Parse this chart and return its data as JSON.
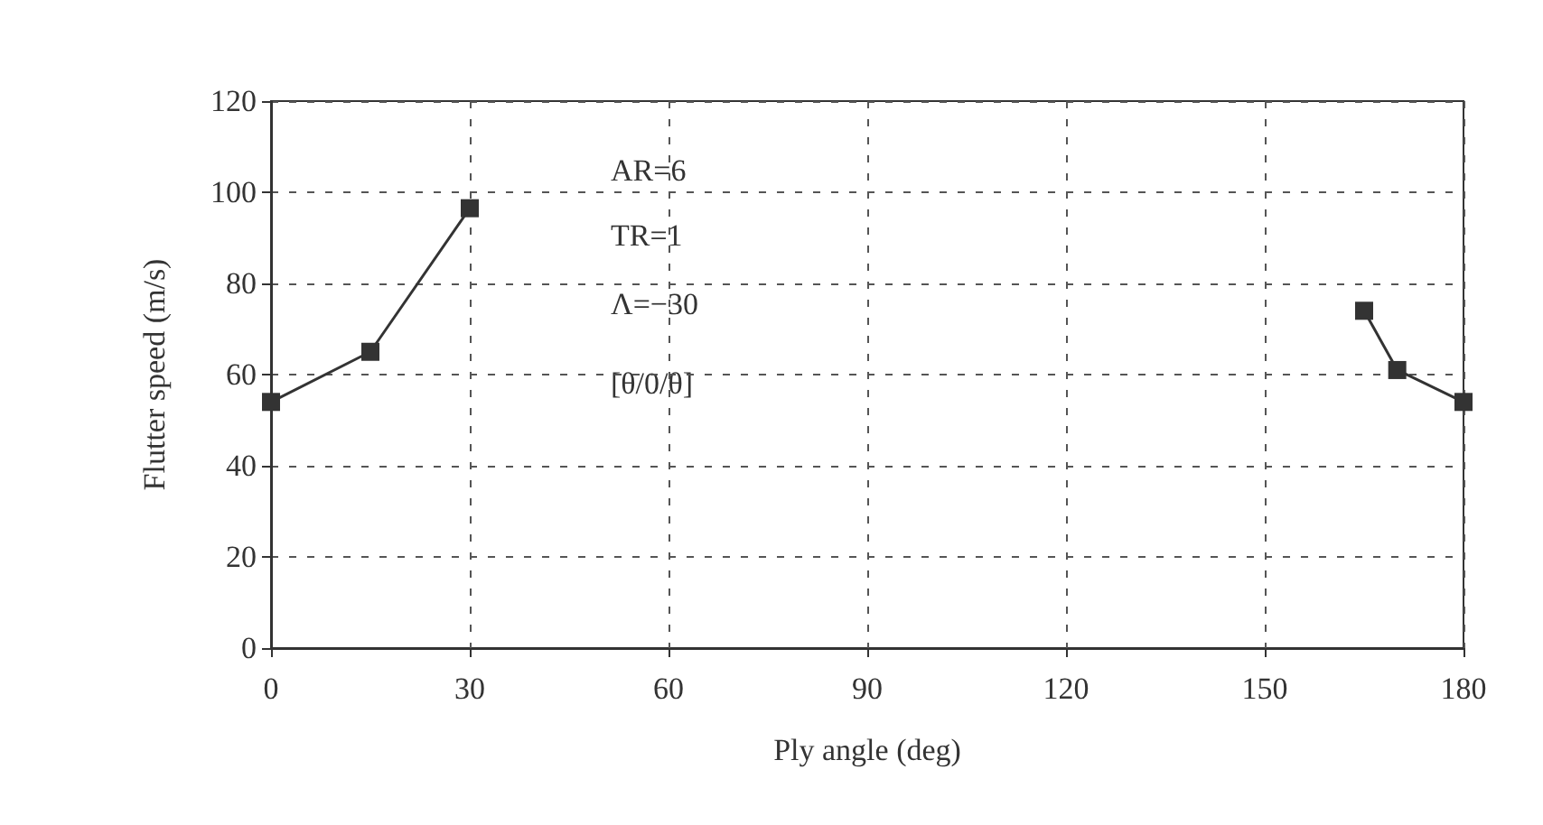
{
  "chart_data": {
    "type": "line",
    "xlabel": "Ply angle (deg)",
    "ylabel": "Flutter speed (m/s)",
    "series": [
      {
        "color": "#333333",
        "x": [
          0,
          15,
          30
        ],
        "values": [
          54,
          65,
          96.5
        ]
      },
      {
        "color": "#333333",
        "x": [
          165,
          170,
          180
        ],
        "values": [
          74,
          61,
          54
        ]
      }
    ],
    "xlim": [
      0,
      180
    ],
    "xticks": [
      0,
      30,
      60,
      90,
      120,
      150,
      180
    ],
    "ylim": [
      0,
      120
    ],
    "yticks": [
      0,
      20,
      40,
      60,
      80,
      100,
      120
    ],
    "grid": true,
    "marker": "square",
    "line_style": "solid",
    "annotations": [
      "AR=6",
      "TR=1",
      "Λ=−30",
      "[θ/0/θ]"
    ]
  }
}
